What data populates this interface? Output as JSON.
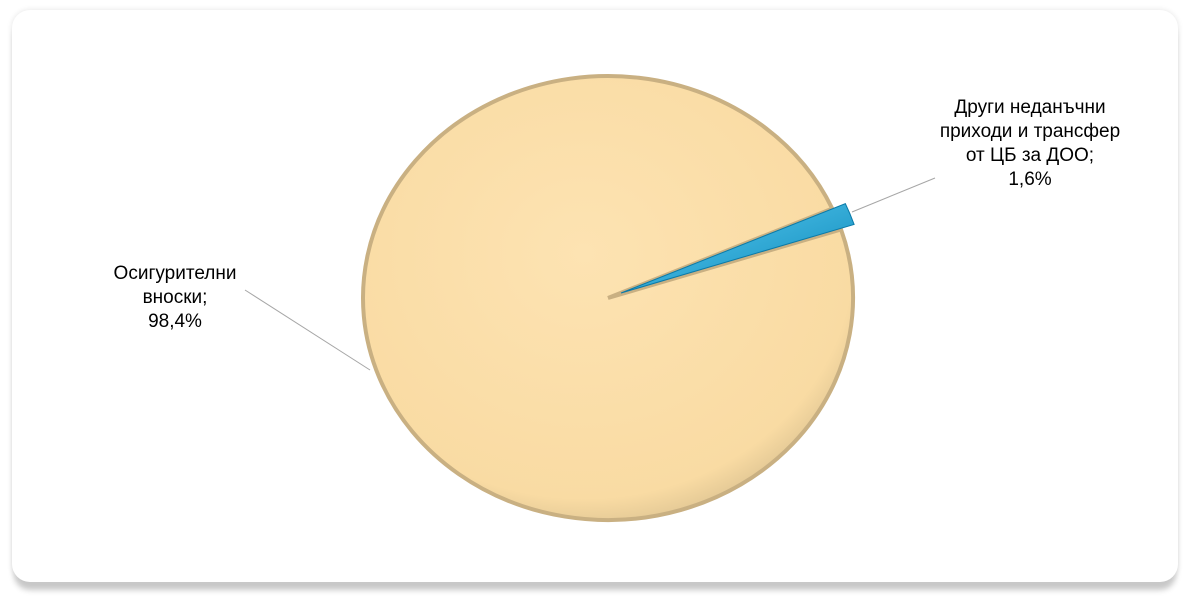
{
  "chart_data": {
    "type": "pie",
    "categories": [
      "Осигурителни вноски;",
      "Други неданъчни приходи и трансфер от ЦБ за ДОО;"
    ],
    "values": [
      98.4,
      1.6
    ],
    "value_labels": [
      "98,4%",
      "1,6%"
    ],
    "colors": [
      "#f9dba3",
      "#1ea6d9"
    ]
  }
}
